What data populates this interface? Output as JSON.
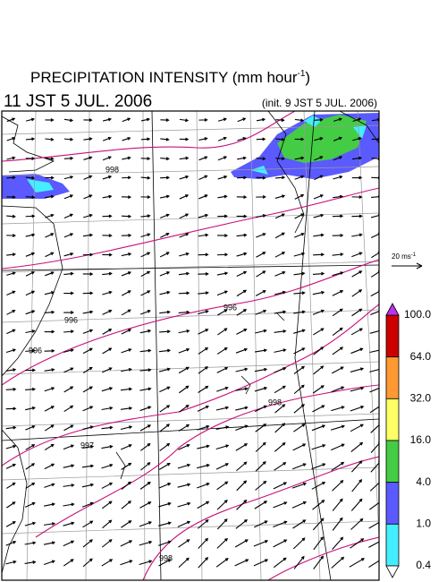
{
  "header": {
    "title": "PRECIPITATION INTENSITY (mm hour",
    "title_sup": "-1",
    "title_end": ")",
    "valid_time": "11 JST 5 JUL. 2006",
    "init": "(init. 9 JST 5 JUL. 2006)"
  },
  "scale": {
    "label": "20 ms",
    "label_sup": "-1"
  },
  "isobars": [
    "998",
    "996",
    "996",
    "996",
    "998",
    "997",
    "998"
  ],
  "colorbar": {
    "labels": [
      "100.0",
      "64.0",
      "32.0",
      "16.0",
      "4.0",
      "1.0",
      "0.4"
    ],
    "colors": [
      "#cc0000",
      "#ff9933",
      "#ffff66",
      "#44cc44",
      "#5a5aff",
      "#44eeff"
    ],
    "over": "#bb33ee",
    "under": "#ffffff"
  }
}
